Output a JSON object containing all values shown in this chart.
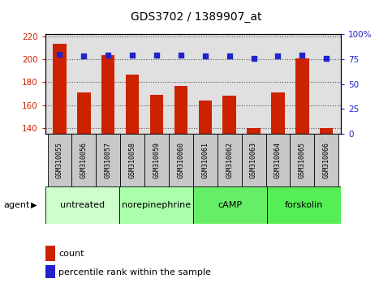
{
  "title": "GDS3702 / 1389907_at",
  "samples": [
    "GSM310055",
    "GSM310056",
    "GSM310057",
    "GSM310058",
    "GSM310059",
    "GSM310060",
    "GSM310061",
    "GSM310062",
    "GSM310063",
    "GSM310064",
    "GSM310065",
    "GSM310066"
  ],
  "counts": [
    214,
    171,
    204,
    187,
    169,
    177,
    164,
    168,
    140,
    171,
    201,
    140
  ],
  "percentiles": [
    80,
    78,
    79,
    79,
    79,
    79,
    78,
    78,
    76,
    78,
    79,
    76
  ],
  "ylim_left": [
    135,
    222
  ],
  "ylim_right": [
    0,
    100
  ],
  "yticks_left": [
    140,
    160,
    180,
    200,
    220
  ],
  "yticks_right": [
    0,
    25,
    50,
    75,
    100
  ],
  "bar_color": "#cc2200",
  "dot_color": "#2222cc",
  "bar_bottom": 135,
  "groups": [
    {
      "label": "untreated",
      "start": 0,
      "end": 3,
      "color": "#ccffcc"
    },
    {
      "label": "norepinephrine",
      "start": 3,
      "end": 6,
      "color": "#aaffaa"
    },
    {
      "label": "cAMP",
      "start": 6,
      "end": 9,
      "color": "#66ee66"
    },
    {
      "label": "forskolin",
      "start": 9,
      "end": 12,
      "color": "#55ee55"
    }
  ],
  "agent_label": "agent",
  "legend_count_label": "count",
  "legend_pct_label": "percentile rank within the sample",
  "bg_plot": "#e0e0e0",
  "sample_box_color": "#c8c8c8",
  "grid_color": "#555555",
  "title_fontsize": 10,
  "tick_fontsize": 7.5,
  "sample_fontsize": 6,
  "group_fontsize": 8,
  "legend_fontsize": 8
}
